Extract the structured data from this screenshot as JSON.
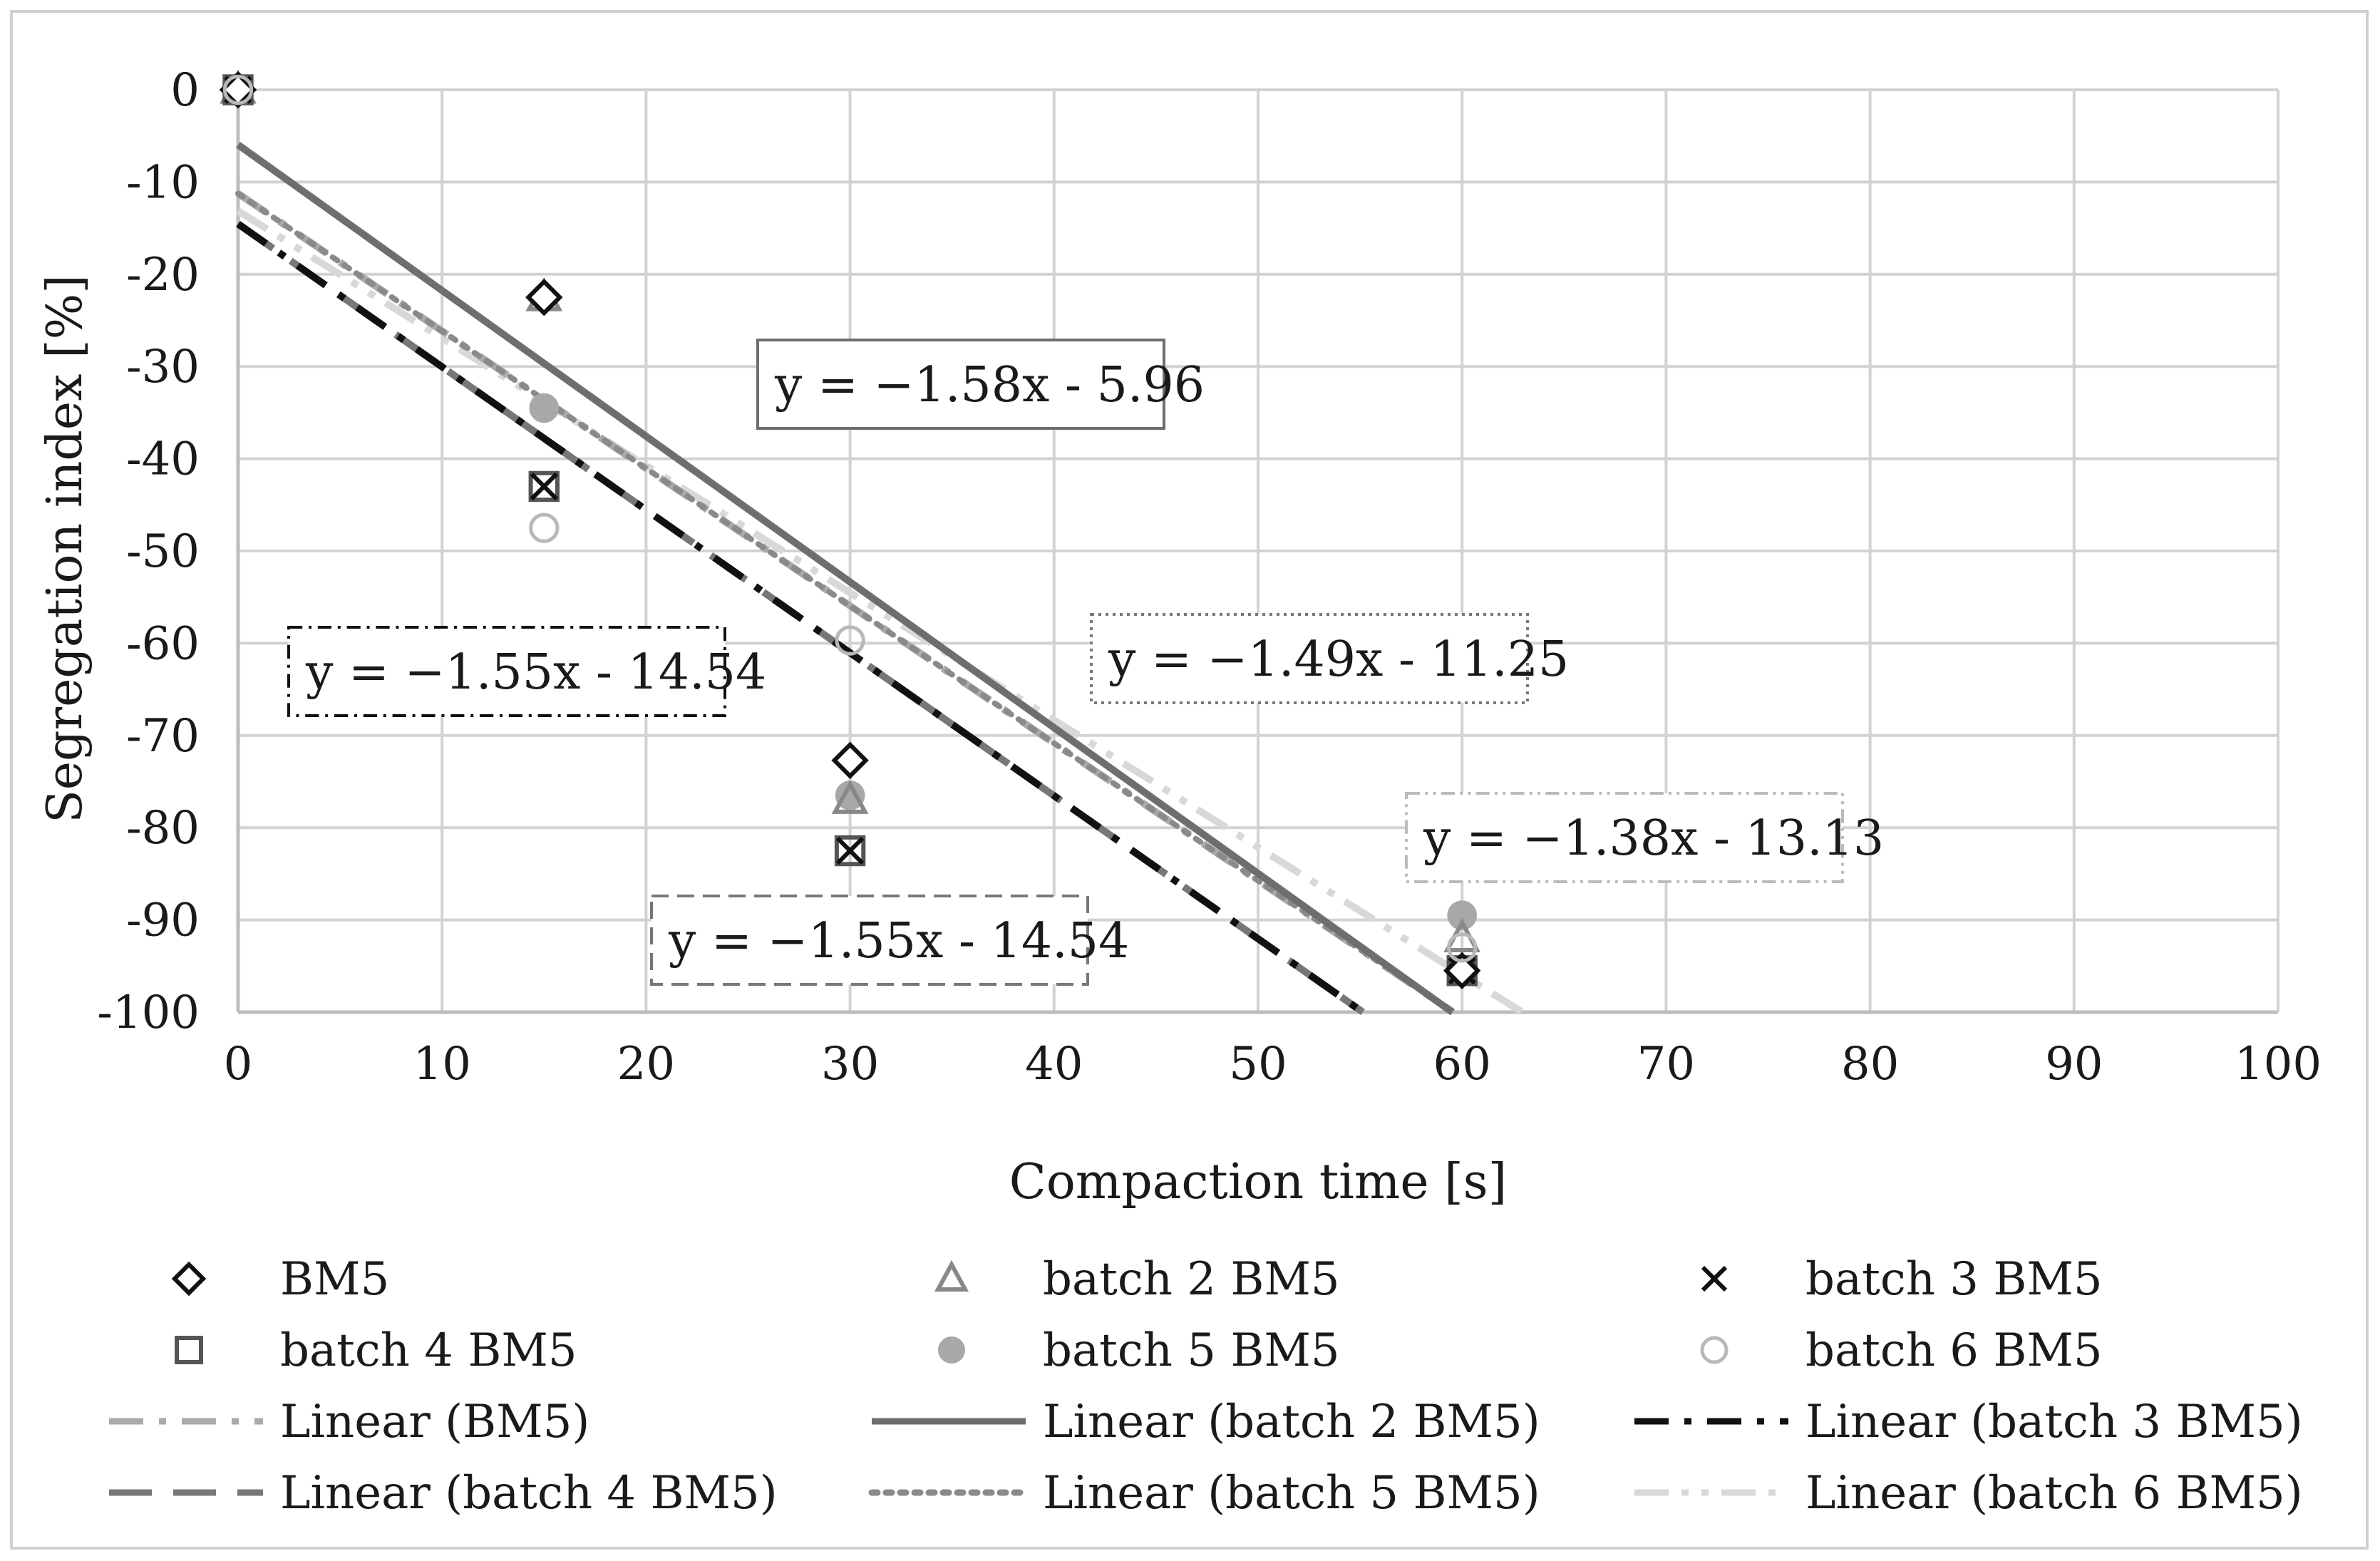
{
  "chart_data": {
    "type": "scatter",
    "xlabel": "Compaction time [s]",
    "ylabel": "Segregation index [%]",
    "xlim": [
      0,
      100
    ],
    "ylim": [
      -100,
      0
    ],
    "xticks": [
      0,
      10,
      20,
      30,
      40,
      50,
      60,
      70,
      80,
      90,
      100
    ],
    "yticks": [
      0,
      -10,
      -20,
      -30,
      -40,
      -50,
      -60,
      -70,
      -80,
      -90,
      -100
    ],
    "grid": true,
    "legend_position": "bottom",
    "series": [
      {
        "name": "BM5",
        "marker": "diamond",
        "color": "#111111",
        "x": [
          0,
          15,
          30,
          60
        ],
        "y": [
          0,
          -22.5,
          -72.7,
          -95.5
        ]
      },
      {
        "name": "batch 2 BM5",
        "marker": "triangle",
        "color": "#888888",
        "x": [
          0,
          15,
          30,
          60
        ],
        "y": [
          0,
          -22.5,
          -77.0,
          -92.0
        ]
      },
      {
        "name": "batch 3 BM5",
        "marker": "x",
        "color": "#111111",
        "x": [
          0,
          15,
          30,
          60
        ],
        "y": [
          0,
          -43.0,
          -82.5,
          -95.5
        ]
      },
      {
        "name": "batch 4 BM5",
        "marker": "square",
        "color": "#555555",
        "x": [
          0,
          15,
          30,
          60
        ],
        "y": [
          0,
          -43.0,
          -82.5,
          -95.5
        ]
      },
      {
        "name": "batch 5 BM5",
        "marker": "filled-circle",
        "color": "#a8a8a8",
        "x": [
          0,
          15,
          30,
          60
        ],
        "y": [
          0,
          -34.5,
          -76.5,
          -89.5
        ]
      },
      {
        "name": "batch 6 BM5",
        "marker": "circle",
        "color": "#b8b8b8",
        "x": [
          0,
          15,
          30,
          60
        ],
        "y": [
          0,
          -47.5,
          -59.7,
          -93.0
        ]
      }
    ],
    "trendlines": [
      {
        "name": "Linear (BM5)",
        "slope": -1.49,
        "intercept": -11.25,
        "style": "dashdot",
        "color": "#aaaaaa"
      },
      {
        "name": "Linear (batch 2 BM5)",
        "slope": -1.58,
        "intercept": -5.96,
        "style": "solid",
        "color": "#6e6e6e"
      },
      {
        "name": "Linear (batch 3 BM5)",
        "slope": -1.55,
        "intercept": -14.54,
        "style": "dashdot",
        "color": "#111111"
      },
      {
        "name": "Linear (batch 4 BM5)",
        "slope": -1.55,
        "intercept": -14.54,
        "style": "dash",
        "color": "#777777"
      },
      {
        "name": "Linear (batch 5 BM5)",
        "slope": -1.49,
        "intercept": -11.25,
        "style": "dot",
        "color": "#8a8a8a"
      },
      {
        "name": "Linear (batch 6 BM5)",
        "slope": -1.38,
        "intercept": -13.13,
        "style": "dashdotdot",
        "color": "#d8d8d8"
      }
    ],
    "annotations": [
      {
        "text": "y = −1.58x - 5.96",
        "box": "solid",
        "color": "#6e6e6e"
      },
      {
        "text": "y = −1.55x - 14.54",
        "box": "dashdot",
        "color": "#111111"
      },
      {
        "text": "y = −1.49x - 11.25",
        "box": "dot",
        "color": "#777777"
      },
      {
        "text": "y = −1.55x - 14.54",
        "box": "dash",
        "color": "#777777"
      },
      {
        "text": "y = −1.38x - 13.13",
        "box": "dashdotdot",
        "color": "#bbbbbb"
      }
    ]
  }
}
